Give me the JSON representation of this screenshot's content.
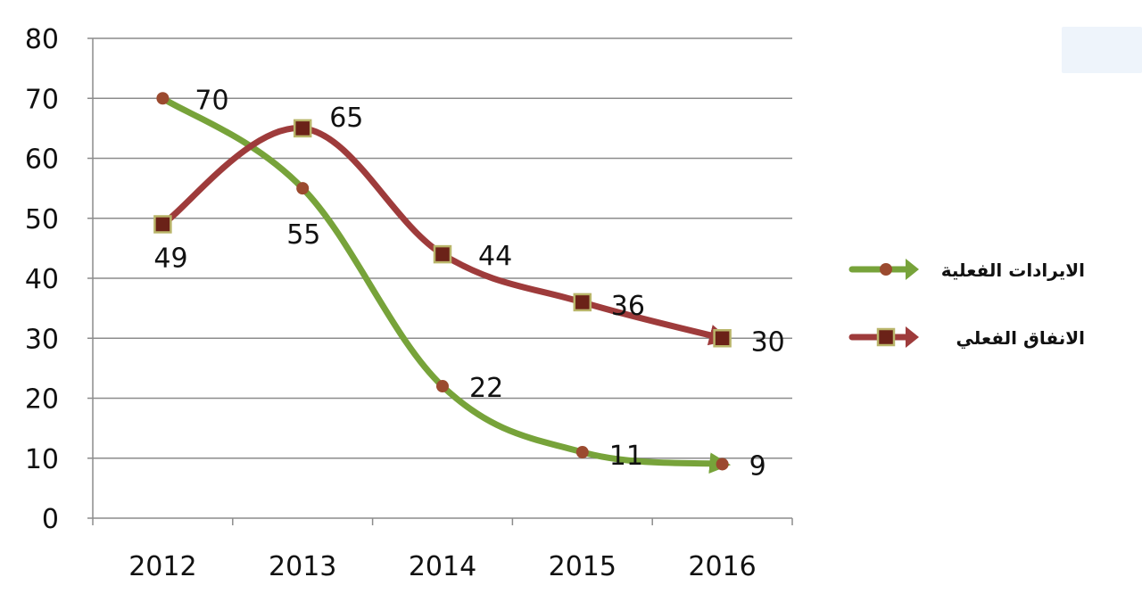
{
  "chart_data": {
    "type": "line",
    "categories": [
      "2012",
      "2013",
      "2014",
      "2015",
      "2016"
    ],
    "ylim": [
      0,
      80
    ],
    "yticks": [
      0,
      10,
      20,
      30,
      40,
      50,
      60,
      70,
      80
    ],
    "grid": true,
    "legend_position": "right",
    "series": [
      {
        "name": "الايرادات الفعلية",
        "values": [
          70,
          55,
          22,
          11,
          9
        ],
        "labels": [
          "70",
          "55",
          "22",
          "11",
          "9"
        ],
        "line_color": "#77a33a",
        "marker_color": "#9b4a2f",
        "marker": "circle"
      },
      {
        "name": "الانفاق الفعلي",
        "values": [
          49,
          65,
          44,
          36,
          30
        ],
        "labels": [
          "49",
          "65",
          "44",
          "36",
          "30"
        ],
        "line_color": "#9e3b3b",
        "marker_color": "#6b2218",
        "marker_border": "#b9b56a",
        "marker": "square"
      }
    ]
  }
}
